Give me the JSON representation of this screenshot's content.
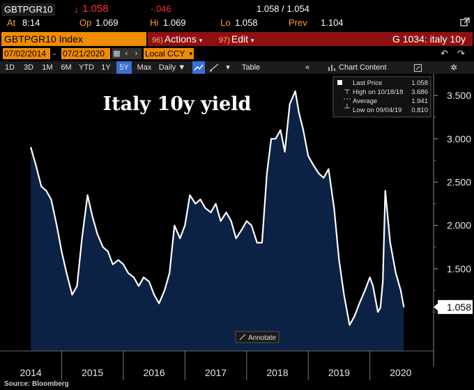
{
  "ticker": {
    "symbol": "GBTPGR10",
    "last": "1.058",
    "change": "-.046",
    "bid_ask": "1.058 / 1.054",
    "at_label": "At",
    "at_time": "8:14",
    "op_label": "Op",
    "op": "1.069",
    "hi_label": "Hi",
    "hi": "1.069",
    "lo_label": "Lo",
    "lo": "1.058",
    "prev_label": "Prev",
    "prev": "1.104"
  },
  "bar": {
    "index_name": "GBTPGR10 Index",
    "actions_num": "96)",
    "actions_label": "Actions",
    "edit_num": "97)",
    "edit_label": "Edit",
    "page_title": "G 1034: italy 10y"
  },
  "dates": {
    "start": "07/02/2014",
    "end": "07/21/2020",
    "currency": "Local CCY"
  },
  "toolbar": {
    "ranges": [
      "1D",
      "3D",
      "1M",
      "6M",
      "YTD",
      "1Y",
      "5Y",
      "Max"
    ],
    "selected_range": "5Y",
    "frequency": "Daily",
    "table_label": "Table",
    "chart_content_label": "Chart Content"
  },
  "legend": {
    "last_price_label": "Last Price",
    "last_price": "1.058",
    "high_label": "High on 10/18/18",
    "high": "3.686",
    "average_label": "Average",
    "average": "1.941",
    "low_label": "Low on 09/04/19",
    "low": "0.810"
  },
  "annotate_label": "Annotate",
  "source": "Source: Bloomberg",
  "colors": {
    "area_fill": "#0b2244",
    "line": "#ffffff",
    "orange": "#f08c00",
    "red_bar": "#8f1010",
    "selected": "#3a6fd6"
  },
  "chart_data": {
    "type": "area",
    "title": "Italy 10y yield",
    "ylim": [
      0.55,
      3.75
    ],
    "y_ticks": [
      "1.500",
      "2.000",
      "2.500",
      "3.000",
      "3.500"
    ],
    "last_value_label": "1.058",
    "x_labels": [
      "2014",
      "2015",
      "2016",
      "2017",
      "2018",
      "2019",
      "2020"
    ],
    "grid": false,
    "series": [
      {
        "x": [
          2014.5,
          2014.58,
          2014.67,
          2014.75,
          2014.83,
          2014.92,
          2015.0,
          2015.08,
          2015.17,
          2015.25,
          2015.33,
          2015.42,
          2015.5,
          2015.58,
          2015.67,
          2015.75,
          2015.83,
          2015.92,
          2016.0,
          2016.08,
          2016.17,
          2016.25,
          2016.33,
          2016.42,
          2016.5,
          2016.58,
          2016.67,
          2016.75,
          2016.83,
          2016.92,
          2017.0,
          2017.08,
          2017.17,
          2017.25,
          2017.33,
          2017.42,
          2017.5,
          2017.58,
          2017.67,
          2017.75,
          2017.83,
          2017.92,
          2018.0,
          2018.08,
          2018.17,
          2018.25,
          2018.33,
          2018.4,
          2018.47,
          2018.55,
          2018.62,
          2018.7,
          2018.79,
          2018.85,
          2018.92,
          2019.0,
          2019.08,
          2019.17,
          2019.25,
          2019.33,
          2019.42,
          2019.5,
          2019.58,
          2019.67,
          2019.75,
          2019.83,
          2019.92,
          2020.0,
          2020.05,
          2020.13,
          2020.17,
          2020.21,
          2020.25,
          2020.33,
          2020.42,
          2020.5,
          2020.55
        ],
        "values": [
          2.9,
          2.7,
          2.45,
          2.4,
          2.3,
          2.0,
          1.7,
          1.45,
          1.2,
          1.3,
          1.85,
          2.35,
          2.1,
          1.9,
          1.75,
          1.7,
          1.55,
          1.6,
          1.55,
          1.45,
          1.4,
          1.3,
          1.4,
          1.35,
          1.2,
          1.1,
          1.25,
          1.45,
          2.0,
          1.85,
          2.0,
          2.35,
          2.25,
          2.3,
          2.2,
          2.15,
          2.25,
          2.05,
          2.15,
          2.05,
          1.85,
          1.95,
          2.05,
          2.0,
          1.8,
          1.8,
          2.6,
          3.0,
          3.0,
          3.1,
          2.85,
          3.4,
          3.55,
          3.3,
          3.1,
          2.8,
          2.7,
          2.6,
          2.55,
          2.65,
          2.2,
          1.6,
          1.2,
          0.85,
          0.95,
          1.1,
          1.25,
          1.4,
          1.3,
          1.0,
          1.05,
          1.35,
          2.4,
          1.8,
          1.45,
          1.25,
          1.058
        ]
      }
    ]
  }
}
